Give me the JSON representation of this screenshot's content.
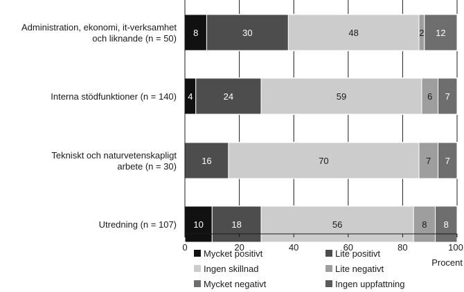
{
  "chart_data": {
    "type": "bar",
    "orientation": "horizontal",
    "stacked": true,
    "categories": [
      [
        "Administration, ekonomi, it-verksamhet",
        "och liknande (n = 50)"
      ],
      [
        "Interna stödfunktioner (n = 140)"
      ],
      [
        "Tekniskt och naturvetenskapligt",
        "arbete (n = 30)"
      ],
      [
        "Utredning (n = 107)"
      ]
    ],
    "series": [
      {
        "name": "Mycket positivt",
        "color": "#111111",
        "values": [
          8,
          4,
          0,
          10
        ]
      },
      {
        "name": "Lite positivt",
        "color": "#4d4d4d",
        "values": [
          30,
          24,
          16,
          18
        ]
      },
      {
        "name": "Ingen skillnad",
        "color": "#cccccc",
        "values": [
          48,
          59,
          70,
          56
        ]
      },
      {
        "name": "Lite negativt",
        "color": "#9e9e9e",
        "values": [
          2,
          6,
          7,
          8
        ]
      },
      {
        "name": "Mycket negativt",
        "color": "#6e6e6e",
        "values": [
          12,
          7,
          7,
          8
        ]
      },
      {
        "name": "Ingen uppfattning",
        "color": "#5a5a5a",
        "values": [
          0,
          0,
          0,
          0
        ]
      }
    ],
    "xlim": [
      0,
      100
    ],
    "xticks": [
      0,
      20,
      40,
      60,
      80,
      100
    ],
    "xlabel": "Procent",
    "grid": true,
    "legend": "bottom"
  }
}
